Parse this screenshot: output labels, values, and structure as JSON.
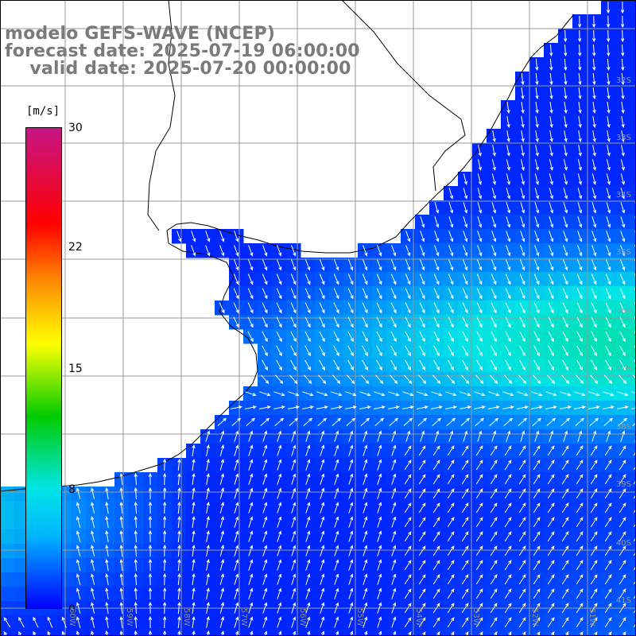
{
  "map": {
    "title_lines": [
      "modelo GEFS-WAVE (NCEP)",
      "forecast date: 2025-07-19 06:00:00",
      "    valid date: 2025-07-20 00:00:00"
    ],
    "variable": "wind speed and direction",
    "colorbar": {
      "unit": "[m/s]",
      "min": 0,
      "max": 30,
      "tick_labels": [
        "30",
        "22",
        "15",
        "8",
        "0"
      ],
      "tick_values": [
        30,
        22,
        15,
        8,
        0
      ],
      "colors": {
        "top": "#c71585",
        "red": "#ff0000",
        "orange": "#ff8c00",
        "yellow": "#ffff00",
        "green": "#00cc00",
        "cyan": "#00e5e5",
        "blue": "#0000ff"
      }
    },
    "latitude_labels": [
      "32S",
      "33S",
      "34S",
      "35S",
      "36S",
      "37S",
      "38S",
      "39S",
      "40S",
      "41S"
    ],
    "longitude_labels": [
      "60W",
      "59W",
      "58W",
      "57W",
      "56W",
      "55W",
      "54W",
      "53W",
      "52W",
      "51W"
    ],
    "land_color": "#ffffff",
    "grid_color": "#9a9a9a",
    "arrow_color": "#ffffff"
  }
}
